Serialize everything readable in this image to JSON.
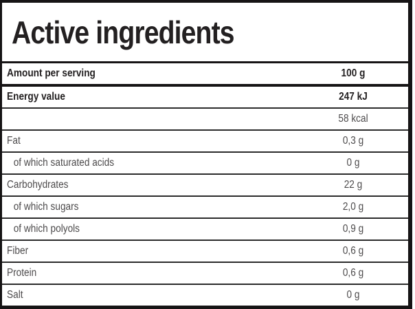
{
  "header": {
    "title": "Active ingredients"
  },
  "table": {
    "rows": [
      {
        "label": "Amount per serving",
        "value": "100 g",
        "bold": true,
        "indent": false,
        "divider": "thick"
      },
      {
        "label": "Energy value",
        "value": "247 kJ",
        "bold": true,
        "indent": false,
        "divider": "normal"
      },
      {
        "label": "",
        "value": "58 kcal",
        "bold": false,
        "indent": false,
        "divider": "normal"
      },
      {
        "label": "Fat",
        "value": "0,3 g",
        "bold": false,
        "indent": false,
        "divider": "normal"
      },
      {
        "label": "of which saturated acids",
        "value": "0 g",
        "bold": false,
        "indent": true,
        "divider": "normal"
      },
      {
        "label": "Carbohydrates",
        "value": "22 g",
        "bold": false,
        "indent": false,
        "divider": "normal"
      },
      {
        "label": "of which sugars",
        "value": "2,0 g",
        "bold": false,
        "indent": true,
        "divider": "normal"
      },
      {
        "label": "of which polyols",
        "value": "0,9 g",
        "bold": false,
        "indent": true,
        "divider": "normal"
      },
      {
        "label": "Fiber",
        "value": "0,6 g",
        "bold": false,
        "indent": false,
        "divider": "normal"
      },
      {
        "label": "Protein",
        "value": "0,6 g",
        "bold": false,
        "indent": false,
        "divider": "normal"
      },
      {
        "label": "Salt",
        "value": "0 g",
        "bold": false,
        "indent": false,
        "divider": "normal"
      }
    ]
  },
  "colors": {
    "frame": "#161415",
    "divider": "#2b2b2b",
    "text_bold": "#232021",
    "text_regular": "#4c4a4b",
    "background": "#ffffff"
  }
}
